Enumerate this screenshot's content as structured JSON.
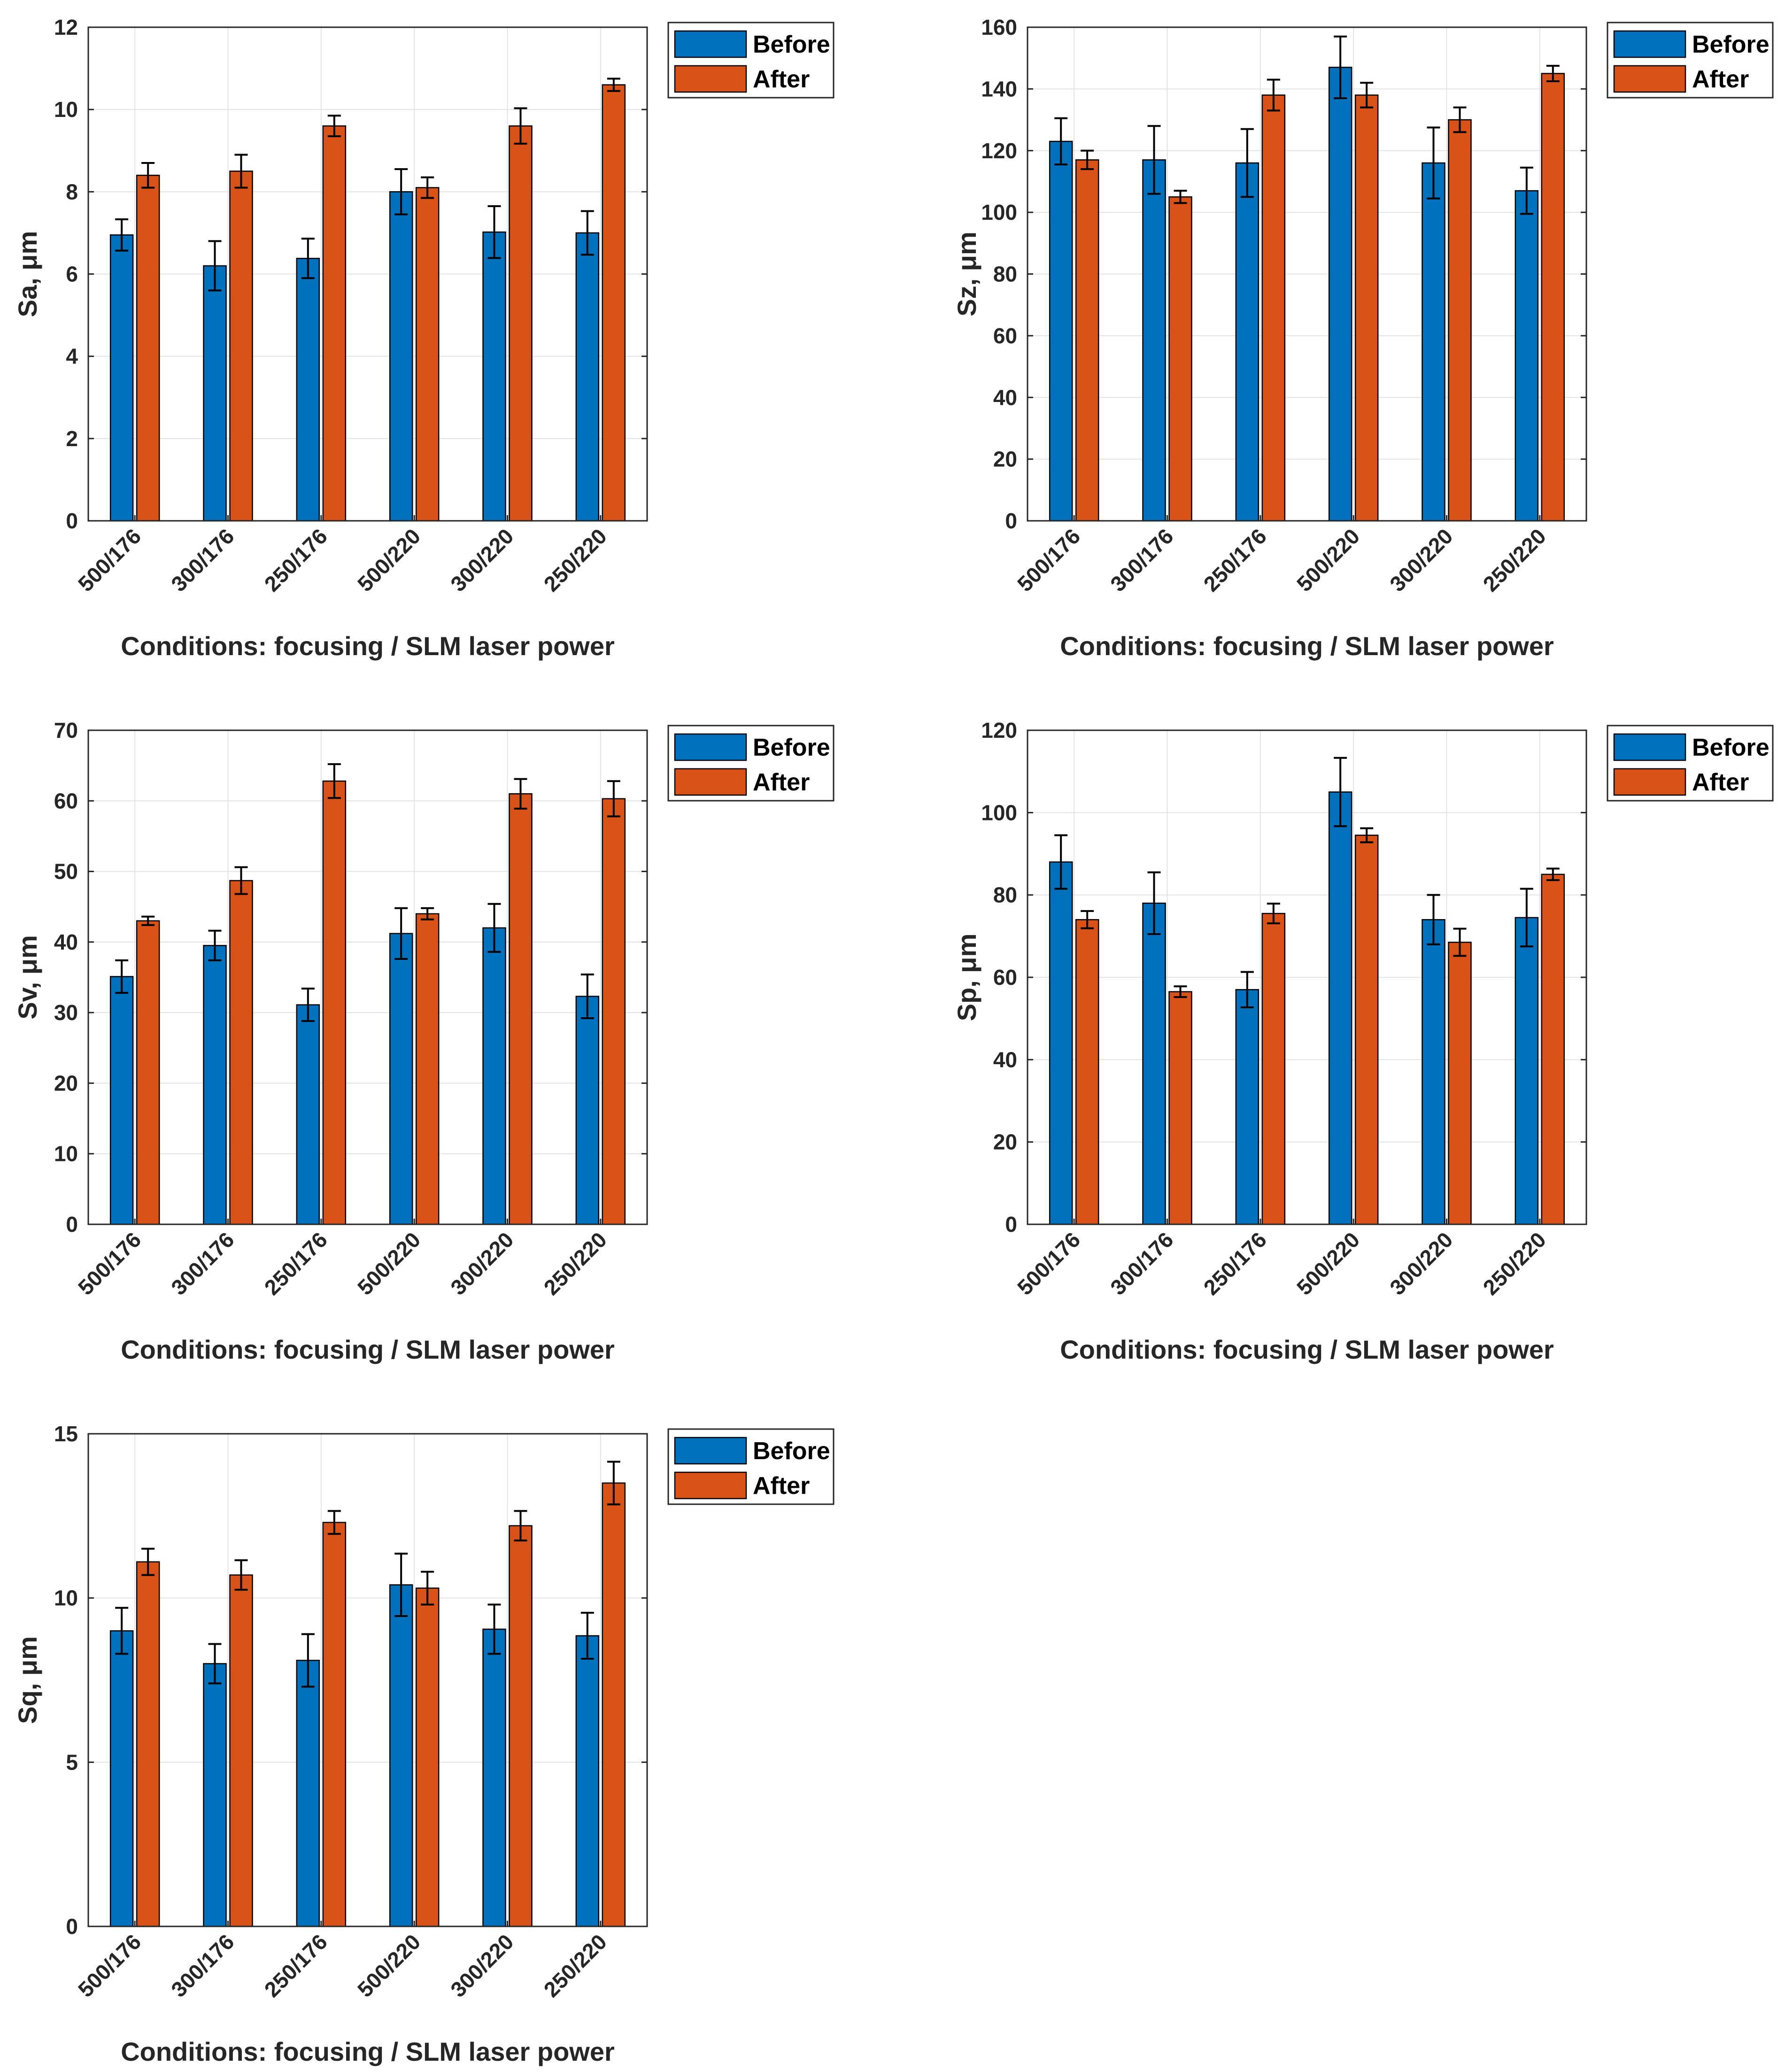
{
  "colors": {
    "before": "#0072BD",
    "after": "#D95319",
    "grid": "#e3e3e3",
    "axis": "#262626"
  },
  "chart_data": [
    {
      "type": "bar",
      "ylabel": "Sa, μm",
      "xlabel": "Conditions: focusing / SLM laser power",
      "categories": [
        "500/176",
        "300/176",
        "250/176",
        "500/220",
        "300/220",
        "250/220"
      ],
      "ylim": [
        0,
        12
      ],
      "yticks": [
        "0",
        "2",
        "4",
        "6",
        "8",
        "10",
        "12"
      ],
      "tick_values": [
        0,
        2,
        4,
        6,
        8,
        10,
        12
      ],
      "grid": true,
      "legend_position": "top-right-outside",
      "series": [
        {
          "name": "Before",
          "values": [
            6.95,
            6.2,
            6.38,
            8.0,
            7.02,
            7.0
          ],
          "errors": [
            0.38,
            0.6,
            0.48,
            0.55,
            0.63,
            0.53
          ]
        },
        {
          "name": "After",
          "values": [
            8.4,
            8.5,
            9.6,
            8.1,
            9.6,
            10.6
          ],
          "errors": [
            0.3,
            0.4,
            0.25,
            0.25,
            0.43,
            0.15
          ]
        }
      ]
    },
    {
      "type": "bar",
      "ylabel": "Sz, μm",
      "xlabel": "Conditions: focusing / SLM laser power",
      "categories": [
        "500/176",
        "300/176",
        "250/176",
        "500/220",
        "300/220",
        "250/220"
      ],
      "ylim": [
        0,
        160
      ],
      "yticks": [
        "0",
        "20",
        "40",
        "60",
        "80",
        "100",
        "120",
        "140",
        "160"
      ],
      "tick_values": [
        0,
        20,
        40,
        60,
        80,
        100,
        120,
        140,
        160
      ],
      "grid": true,
      "legend_position": "top-right-outside",
      "series": [
        {
          "name": "Before",
          "values": [
            123,
            117,
            116,
            147,
            116,
            107
          ],
          "errors": [
            7.5,
            11,
            11,
            10,
            11.5,
            7.5
          ]
        },
        {
          "name": "After",
          "values": [
            117,
            105,
            138,
            138,
            130,
            145
          ],
          "errors": [
            3,
            2,
            5,
            4,
            4,
            2.5
          ]
        }
      ]
    },
    {
      "type": "bar",
      "ylabel": "Sv, μm",
      "xlabel": "Conditions: focusing / SLM laser power",
      "categories": [
        "500/176",
        "300/176",
        "250/176",
        "500/220",
        "300/220",
        "250/220"
      ],
      "ylim": [
        0,
        70
      ],
      "yticks": [
        "0",
        "10",
        "20",
        "30",
        "40",
        "50",
        "60",
        "70"
      ],
      "tick_values": [
        0,
        10,
        20,
        30,
        40,
        50,
        60,
        70
      ],
      "grid": true,
      "legend_position": "top-right-outside",
      "series": [
        {
          "name": "Before",
          "values": [
            35.1,
            39.5,
            31.1,
            41.2,
            42,
            32.3
          ],
          "errors": [
            2.3,
            2.1,
            2.3,
            3.6,
            3.4,
            3.1
          ]
        },
        {
          "name": "After",
          "values": [
            43,
            48.7,
            62.8,
            44,
            61,
            60.3
          ],
          "errors": [
            0.6,
            1.9,
            2.4,
            0.8,
            2.1,
            2.5
          ]
        }
      ]
    },
    {
      "type": "bar",
      "ylabel": "Sp, μm",
      "xlabel": "Conditions: focusing / SLM laser power",
      "categories": [
        "500/176",
        "300/176",
        "250/176",
        "500/220",
        "300/220",
        "250/220"
      ],
      "ylim": [
        0,
        120
      ],
      "yticks": [
        "0",
        "20",
        "40",
        "60",
        "80",
        "100",
        "120"
      ],
      "tick_values": [
        0,
        20,
        40,
        60,
        80,
        100,
        120
      ],
      "grid": true,
      "legend_position": "top-right-outside",
      "series": [
        {
          "name": "Before",
          "values": [
            88,
            78,
            57,
            105,
            74,
            74.5
          ],
          "errors": [
            6.5,
            7.5,
            4.3,
            8.3,
            6,
            7
          ]
        },
        {
          "name": "After",
          "values": [
            74,
            56.5,
            75.5,
            94.5,
            68.5,
            85
          ],
          "errors": [
            2.1,
            1.3,
            2.4,
            1.7,
            3.3,
            1.4
          ]
        }
      ]
    },
    {
      "type": "bar",
      "ylabel": "Sq, μm",
      "xlabel": "Conditions: focusing / SLM laser power",
      "categories": [
        "500/176",
        "300/176",
        "250/176",
        "500/220",
        "300/220",
        "250/220"
      ],
      "ylim": [
        0,
        15
      ],
      "yticks": [
        "0",
        "5",
        "10",
        "15"
      ],
      "tick_values": [
        0,
        5,
        10,
        15
      ],
      "grid": true,
      "legend_position": "top-right-outside",
      "series": [
        {
          "name": "Before",
          "values": [
            9.0,
            8.0,
            8.1,
            10.4,
            9.05,
            8.85
          ],
          "errors": [
            0.7,
            0.6,
            0.8,
            0.95,
            0.75,
            0.7
          ]
        },
        {
          "name": "After",
          "values": [
            11.1,
            10.7,
            12.3,
            10.3,
            12.2,
            13.5
          ],
          "errors": [
            0.4,
            0.45,
            0.35,
            0.5,
            0.45,
            0.65
          ]
        }
      ]
    }
  ]
}
